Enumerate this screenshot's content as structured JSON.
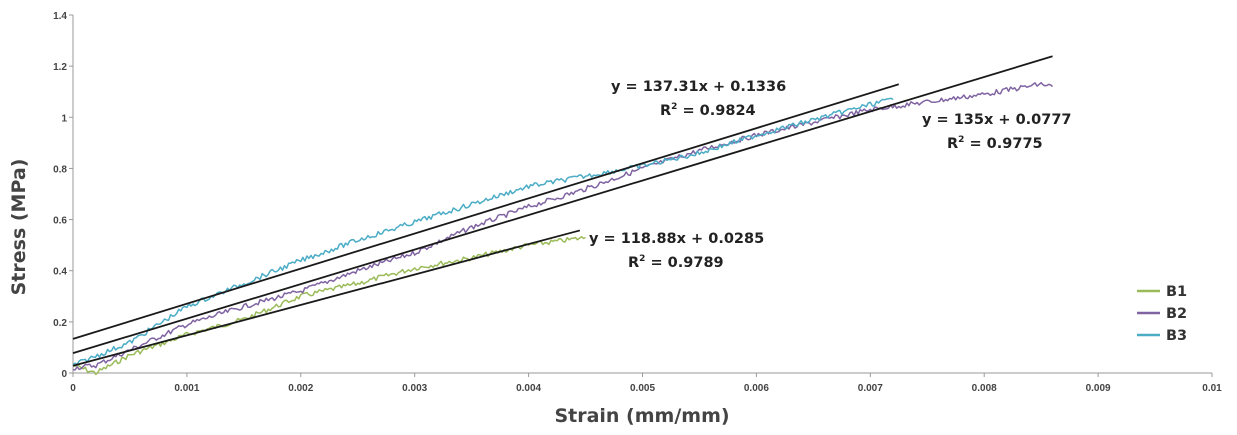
{
  "chart_data": {
    "type": "line",
    "title": "",
    "xlabel": "Strain (mm/mm)",
    "ylabel": "Stress (MPa)",
    "xlim": [
      0,
      0.01
    ],
    "ylim": [
      0,
      1.4
    ],
    "xticks": [
      "0",
      "0.001",
      "0.002",
      "0.003",
      "0.004",
      "0.005",
      "0.006",
      "0.007",
      "0.008",
      "0.009",
      "0.01"
    ],
    "yticks": [
      "0",
      "0.2",
      "0.4",
      "0.6",
      "0.8",
      "1",
      "1.2",
      "1.4"
    ],
    "grid": false,
    "legend": {
      "position": "right",
      "entries": [
        "B1",
        "B2",
        "B3"
      ]
    },
    "series": [
      {
        "name": "B1",
        "color": "#9bbb59",
        "x": [
          0,
          0.0002,
          0.0005,
          0.001,
          0.0015,
          0.002,
          0.0025,
          0.003,
          0.0035,
          0.004,
          0.0045
        ],
        "y": [
          0.03,
          0.0,
          0.07,
          0.15,
          0.21,
          0.3,
          0.35,
          0.41,
          0.45,
          0.5,
          0.53
        ]
      },
      {
        "name": "B2",
        "color": "#8064a2",
        "x": [
          0,
          0.0002,
          0.0005,
          0.001,
          0.0015,
          0.002,
          0.0025,
          0.003,
          0.0035,
          0.004,
          0.0045,
          0.005,
          0.0055,
          0.006,
          0.0065,
          0.007,
          0.0075,
          0.008,
          0.0085,
          0.0086
        ],
        "y": [
          0.02,
          0.03,
          0.09,
          0.19,
          0.26,
          0.32,
          0.4,
          0.47,
          0.57,
          0.65,
          0.72,
          0.8,
          0.87,
          0.93,
          0.98,
          1.03,
          1.06,
          1.09,
          1.13,
          1.12
        ]
      },
      {
        "name": "B3",
        "color": "#4bacc6",
        "x": [
          0,
          0.0005,
          0.001,
          0.0015,
          0.002,
          0.0025,
          0.003,
          0.0035,
          0.004,
          0.0045,
          0.005,
          0.0055,
          0.006,
          0.0065,
          0.007,
          0.0072
        ],
        "y": [
          0.03,
          0.12,
          0.26,
          0.35,
          0.44,
          0.52,
          0.59,
          0.66,
          0.73,
          0.77,
          0.81,
          0.86,
          0.93,
          0.99,
          1.05,
          1.07
        ]
      }
    ],
    "trendlines": [
      {
        "series": "B3",
        "slope": 137.31,
        "intercept": 0.1336,
        "x_range": [
          0,
          0.00725
        ],
        "equation": "y = 137.31x + 0.1336",
        "r2_prefix": "R",
        "r2_sup": "2",
        "r2_value": " = 0.9824"
      },
      {
        "series": "B2",
        "slope": 135,
        "intercept": 0.0777,
        "x_range": [
          0,
          0.0086
        ],
        "equation": "y = 135x + 0.0777",
        "r2_prefix": "R",
        "r2_sup": "2",
        "r2_value": " = 0.9775"
      },
      {
        "series": "B1",
        "slope": 118.88,
        "intercept": 0.0285,
        "x_range": [
          0,
          0.00445
        ],
        "equation": "y = 118.88x + 0.0285",
        "r2_prefix": "R",
        "r2_sup": "2",
        "r2_value": " = 0.9789"
      }
    ]
  }
}
